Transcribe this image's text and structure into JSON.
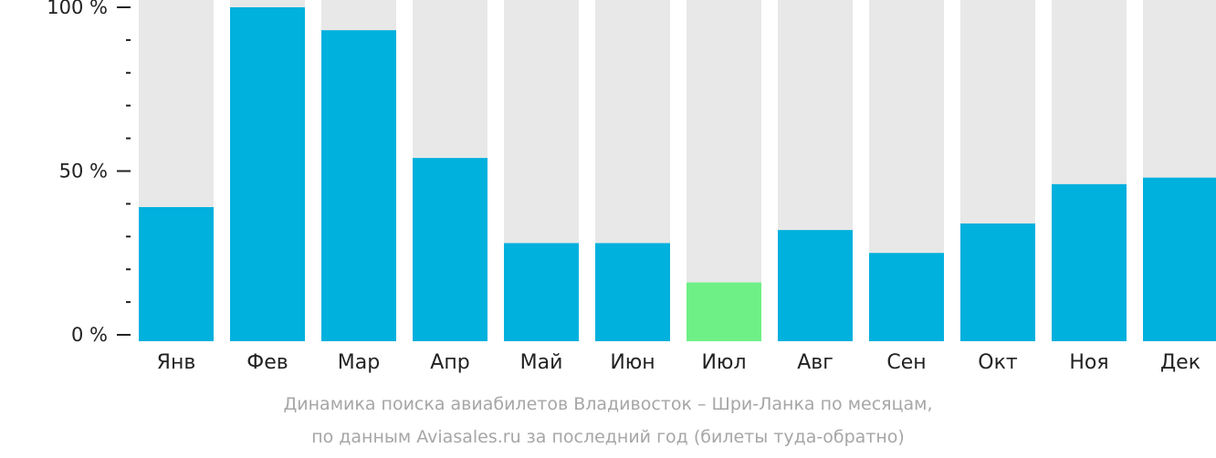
{
  "chart_data": {
    "type": "bar",
    "categories": [
      "Янв",
      "Фев",
      "Мар",
      "Апр",
      "Май",
      "Июн",
      "Июл",
      "Авг",
      "Сен",
      "Окт",
      "Ноя",
      "Дек"
    ],
    "values": [
      39,
      100,
      93,
      54,
      28,
      28,
      16,
      32,
      25,
      34,
      46,
      48
    ],
    "highlight_index": 6,
    "yticks": [
      "0 %",
      "50 %",
      "100 %"
    ],
    "ylim": [
      0,
      100
    ],
    "colors": {
      "bar": "#00b0dd",
      "highlight": "#6ff087",
      "background_bar": "#e8e8e8",
      "axis": "#222222"
    }
  },
  "caption": {
    "line1": "Динамика поиска авиабилетов Владивосток – Шри-Ланка по месяцам,",
    "line2": "по данным Aviasales.ru за последний год (билеты туда-обратно)"
  }
}
